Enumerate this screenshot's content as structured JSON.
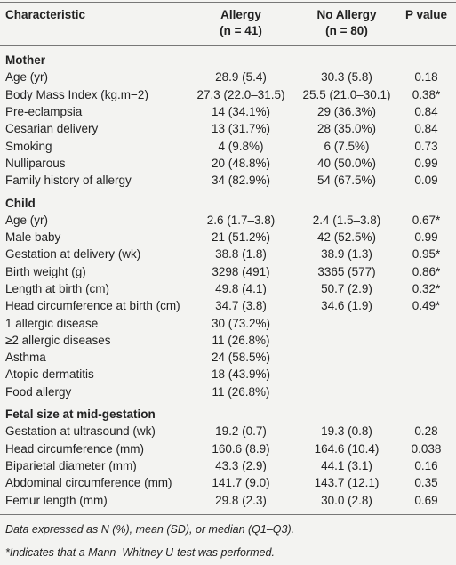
{
  "header": {
    "characteristic": "Characteristic",
    "allergy": "Allergy",
    "allergy_n": "(n = 41)",
    "no_allergy": "No Allergy",
    "no_allergy_n": "(n = 80)",
    "p_value": "P value"
  },
  "sections": [
    {
      "title": "Mother",
      "rows": [
        [
          "Age (yr)",
          "28.9 (5.4)",
          "30.3 (5.8)",
          "0.18"
        ],
        [
          "Body Mass Index (kg.m−2)",
          "27.3 (22.0–31.5)",
          "25.5 (21.0–30.1)",
          "0.38*"
        ],
        [
          "Pre-eclampsia",
          "14 (34.1%)",
          "29 (36.3%)",
          "0.84"
        ],
        [
          "Cesarian delivery",
          "13 (31.7%)",
          "28 (35.0%)",
          "0.84"
        ],
        [
          "Smoking",
          "4 (9.8%)",
          "6 (7.5%)",
          "0.73"
        ],
        [
          "Nulliparous",
          "20 (48.8%)",
          "40 (50.0%)",
          "0.99"
        ],
        [
          "Family history of allergy",
          "34 (82.9%)",
          "54 (67.5%)",
          "0.09"
        ]
      ]
    },
    {
      "title": "Child",
      "rows": [
        [
          "Age (yr)",
          "2.6 (1.7–3.8)",
          "2.4 (1.5–3.8)",
          "0.67*"
        ],
        [
          "Male baby",
          "21 (51.2%)",
          "42 (52.5%)",
          "0.99"
        ],
        [
          "Gestation at delivery (wk)",
          "38.8 (1.8)",
          "38.9 (1.3)",
          "0.95*"
        ],
        [
          "Birth weight (g)",
          "3298 (491)",
          "3365 (577)",
          "0.86*"
        ],
        [
          "Length at birth (cm)",
          "49.8 (4.1)",
          "50.7 (2.9)",
          "0.32*"
        ],
        [
          "Head circumference at birth (cm)",
          "34.7 (3.8)",
          "34.6 (1.9)",
          "0.49*"
        ],
        [
          "1 allergic disease",
          "30 (73.2%)"
        ],
        [
          "≥2 allergic diseases",
          "11 (26.8%)"
        ],
        [
          "Asthma",
          "24 (58.5%)"
        ],
        [
          "Atopic dermatitis",
          "18 (43.9%)"
        ],
        [
          "Food allergy",
          "11 (26.8%)"
        ]
      ]
    },
    {
      "title": "Fetal size at mid-gestation",
      "rows": [
        [
          "Gestation at ultrasound (wk)",
          "19.2 (0.7)",
          "19.3 (0.8)",
          "0.28"
        ],
        [
          "Head circumference (mm)",
          "160.6 (8.9)",
          "164.6 (10.4)",
          "0.038"
        ],
        [
          "Biparietal diameter (mm)",
          "43.3 (2.9)",
          "44.1 (3.1)",
          "0.16"
        ],
        [
          "Abdominal circumference (mm)",
          "141.7 (9.0)",
          "143.7 (12.1)",
          "0.35"
        ],
        [
          "Femur length (mm)",
          "29.8 (2.3)",
          "30.0 (2.8)",
          "0.69"
        ]
      ]
    }
  ],
  "footnotes": [
    "Data expressed as N (%), mean (SD), or median (Q1–Q3).",
    "*Indicates that a Mann–Whitney U-test was performed."
  ]
}
